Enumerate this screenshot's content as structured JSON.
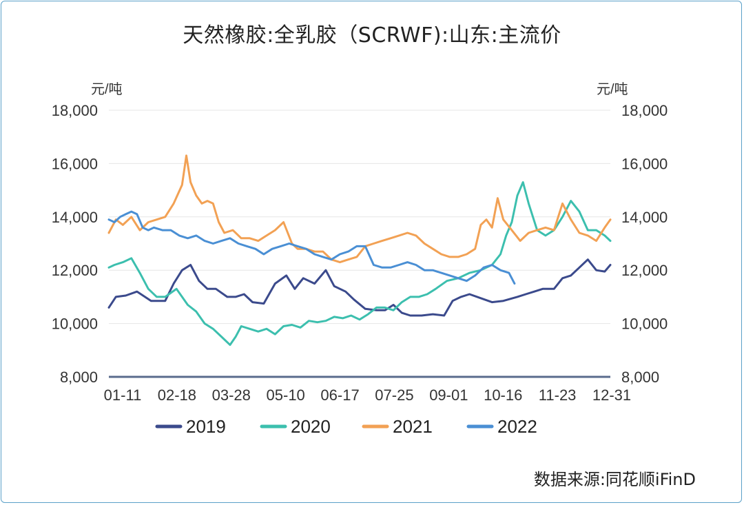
{
  "chart_data": {
    "type": "line",
    "title": "天然橡胶:全乳胶（SCRWF):山东:主流价",
    "ylabel_left": "元/吨",
    "ylabel_right": "元/吨",
    "ylim": [
      8000,
      18000
    ],
    "yticks": [
      "8,000",
      "10,000",
      "12,000",
      "14,000",
      "16,000",
      "18,000"
    ],
    "ytick_values": [
      8000,
      10000,
      12000,
      14000,
      16000,
      18000
    ],
    "xlim": [
      0,
      356
    ],
    "xtick_labels": [
      "01-11",
      "02-18",
      "03-28",
      "05-10",
      "06-17",
      "07-25",
      "09-01",
      "10-16",
      "11-23",
      "12-31"
    ],
    "xtick_days": [
      10,
      48,
      86,
      129,
      167,
      205,
      243,
      288,
      326,
      364
    ],
    "grid": true,
    "legend_position": "bottom",
    "source": "数据来源:同花顺iFinD",
    "series": [
      {
        "name": "2019",
        "color": "#3b4a8c",
        "x": [
          0,
          5,
          12,
          20,
          30,
          40,
          46,
          52,
          58,
          64,
          70,
          76,
          84,
          90,
          96,
          102,
          110,
          118,
          126,
          132,
          138,
          146,
          154,
          160,
          168,
          174,
          182,
          190,
          196,
          202,
          208,
          214,
          222,
          230,
          238,
          244,
          250,
          256,
          264,
          272,
          280,
          290,
          296,
          302,
          308,
          316,
          322,
          328,
          334,
          340,
          346,
          352,
          356
        ],
        "y": [
          10600,
          11000,
          11050,
          11200,
          10850,
          10850,
          11500,
          12000,
          12200,
          11600,
          11300,
          11300,
          11000,
          11000,
          11100,
          10800,
          10750,
          11500,
          11800,
          11300,
          11700,
          11500,
          12000,
          11400,
          11200,
          10900,
          10550,
          10500,
          10500,
          10700,
          10400,
          10300,
          10300,
          10350,
          10300,
          10850,
          11000,
          11100,
          10950,
          10800,
          10850,
          11000,
          11100,
          11200,
          11300,
          11300,
          11700,
          11800,
          12100,
          12400,
          12000,
          11950,
          12200
        ]
      },
      {
        "name": "2020",
        "color": "#3cbfae",
        "x": [
          0,
          4,
          10,
          16,
          22,
          28,
          34,
          40,
          48,
          56,
          62,
          68,
          74,
          80,
          86,
          90,
          94,
          100,
          106,
          112,
          118,
          124,
          130,
          136,
          142,
          148,
          154,
          160,
          166,
          172,
          178,
          184,
          190,
          196,
          202,
          208,
          214,
          220,
          226,
          232,
          240,
          248,
          256,
          264,
          272,
          278,
          282,
          286,
          290,
          294,
          298,
          304,
          310,
          316,
          322,
          328,
          334,
          340,
          346,
          352,
          356
        ],
        "y": [
          12100,
          12200,
          12300,
          12450,
          11900,
          11300,
          11000,
          11000,
          11300,
          10700,
          10450,
          10000,
          9800,
          9500,
          9200,
          9500,
          9900,
          9800,
          9700,
          9800,
          9600,
          9900,
          9950,
          9850,
          10100,
          10050,
          10100,
          10250,
          10200,
          10300,
          10150,
          10350,
          10600,
          10600,
          10500,
          10800,
          11000,
          11000,
          11100,
          11300,
          11600,
          11700,
          11900,
          12000,
          12200,
          12600,
          13300,
          13800,
          14800,
          15300,
          14500,
          13500,
          13300,
          13500,
          14000,
          14600,
          14200,
          13500,
          13500,
          13300,
          13100
        ]
      },
      {
        "name": "2021",
        "color": "#f2a154",
        "x": [
          0,
          5,
          10,
          16,
          22,
          28,
          34,
          40,
          46,
          52,
          55,
          58,
          62,
          66,
          70,
          74,
          78,
          82,
          88,
          94,
          100,
          106,
          112,
          118,
          124,
          130,
          134,
          140,
          146,
          152,
          158,
          164,
          170,
          176,
          182,
          188,
          194,
          200,
          206,
          212,
          218,
          224,
          230,
          236,
          242,
          248,
          254,
          260,
          264,
          268,
          272,
          276,
          280,
          286,
          292,
          298,
          304,
          310,
          316,
          322,
          328,
          334,
          340,
          346,
          352,
          356
        ],
        "y": [
          13400,
          13900,
          13700,
          14000,
          13500,
          13800,
          13900,
          14000,
          14500,
          15200,
          16300,
          15300,
          14800,
          14500,
          14600,
          14500,
          13800,
          13400,
          13500,
          13200,
          13200,
          13100,
          13300,
          13500,
          13800,
          13000,
          12800,
          12800,
          12700,
          12700,
          12400,
          12300,
          12400,
          12500,
          12900,
          13000,
          13100,
          13200,
          13300,
          13400,
          13300,
          13000,
          12800,
          12600,
          12500,
          12500,
          12600,
          12800,
          13700,
          13900,
          13600,
          14700,
          13900,
          13500,
          13100,
          13400,
          13500,
          13600,
          13500,
          14500,
          13900,
          13400,
          13300,
          13100,
          13600,
          13900
        ]
      },
      {
        "name": "2022",
        "color": "#4a8fd4",
        "x": [
          0,
          4,
          8,
          12,
          16,
          20,
          24,
          28,
          32,
          38,
          44,
          50,
          56,
          62,
          68,
          74,
          80,
          86,
          92,
          98,
          104,
          110,
          116,
          122,
          128,
          134,
          140,
          146,
          152,
          158,
          164,
          170,
          176,
          182,
          188,
          194,
          200,
          206,
          212,
          218,
          224,
          230,
          236,
          242,
          248,
          254,
          260,
          266,
          272,
          278,
          284,
          288
        ],
        "y": [
          13900,
          13800,
          14000,
          14100,
          14200,
          14100,
          13600,
          13500,
          13600,
          13500,
          13500,
          13300,
          13200,
          13300,
          13100,
          13000,
          13100,
          13200,
          13000,
          12900,
          12800,
          12600,
          12800,
          12900,
          13000,
          12900,
          12800,
          12600,
          12500,
          12400,
          12600,
          12700,
          12900,
          12900,
          12200,
          12100,
          12100,
          12200,
          12300,
          12200,
          12000,
          12000,
          11900,
          11800,
          11700,
          11600,
          11800,
          12100,
          12200,
          12000,
          11900,
          11500
        ]
      }
    ]
  }
}
